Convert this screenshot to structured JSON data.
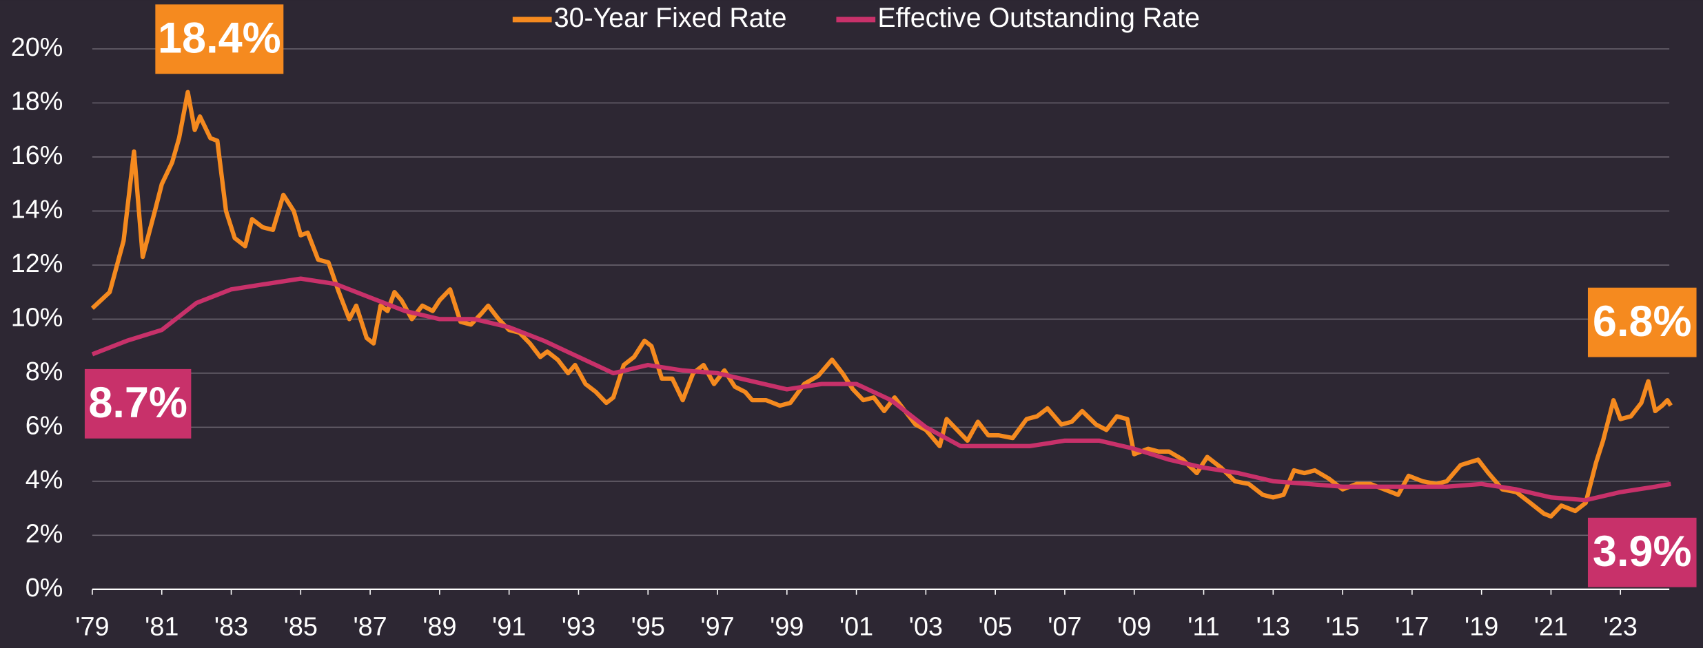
{
  "chart_data": {
    "type": "line",
    "xlim": [
      1979,
      2024.5
    ],
    "xticks": [
      {
        "value": 1979,
        "label": "'79"
      },
      {
        "value": 1981,
        "label": "'81"
      },
      {
        "value": 1983,
        "label": "'83"
      },
      {
        "value": 1985,
        "label": "'85"
      },
      {
        "value": 1987,
        "label": "'87"
      },
      {
        "value": 1989,
        "label": "'89"
      },
      {
        "value": 1991,
        "label": "'91"
      },
      {
        "value": 1993,
        "label": "'93"
      },
      {
        "value": 1995,
        "label": "'95"
      },
      {
        "value": 1997,
        "label": "'97"
      },
      {
        "value": 1999,
        "label": "'99"
      },
      {
        "value": 2001,
        "label": "'01"
      },
      {
        "value": 2003,
        "label": "'03"
      },
      {
        "value": 2005,
        "label": "'05"
      },
      {
        "value": 2007,
        "label": "'07"
      },
      {
        "value": 2009,
        "label": "'09"
      },
      {
        "value": 2011,
        "label": "'11"
      },
      {
        "value": 2013,
        "label": "'13"
      },
      {
        "value": 2015,
        "label": "'15"
      },
      {
        "value": 2017,
        "label": "'17"
      },
      {
        "value": 2019,
        "label": "'19"
      },
      {
        "value": 2021,
        "label": "'21"
      },
      {
        "value": 2023,
        "label": "'23"
      }
    ],
    "ylim": [
      0,
      20
    ],
    "yticks": [
      {
        "value": 0,
        "label": "0%"
      },
      {
        "value": 2,
        "label": "2%"
      },
      {
        "value": 4,
        "label": "4%"
      },
      {
        "value": 6,
        "label": "6%"
      },
      {
        "value": 8,
        "label": "8%"
      },
      {
        "value": 10,
        "label": "10%"
      },
      {
        "value": 12,
        "label": "12%"
      },
      {
        "value": 14,
        "label": "14%"
      },
      {
        "value": 16,
        "label": "16%"
      },
      {
        "value": 18,
        "label": "18%"
      },
      {
        "value": 20,
        "label": "20%"
      }
    ],
    "grid": true,
    "legend": "top",
    "series": [
      {
        "name": "30-Year Fixed Rate",
        "color": "#f58a1f",
        "x": [
          1979.0,
          1979.5,
          1979.9,
          1980.2,
          1980.45,
          1980.8,
          1981.0,
          1981.3,
          1981.5,
          1981.75,
          1981.95,
          1982.1,
          1982.4,
          1982.6,
          1982.85,
          1983.1,
          1983.4,
          1983.6,
          1983.9,
          1984.2,
          1984.5,
          1984.8,
          1985.0,
          1985.2,
          1985.5,
          1985.8,
          1986.1,
          1986.4,
          1986.6,
          1986.9,
          1987.1,
          1987.3,
          1987.5,
          1987.7,
          1987.9,
          1988.2,
          1988.5,
          1988.8,
          1989.0,
          1989.3,
          1989.6,
          1989.9,
          1990.2,
          1990.4,
          1990.7,
          1991.0,
          1991.3,
          1991.6,
          1991.9,
          1992.1,
          1992.4,
          1992.7,
          1992.9,
          1993.2,
          1993.5,
          1993.8,
          1994.0,
          1994.3,
          1994.6,
          1994.9,
          1995.1,
          1995.4,
          1995.7,
          1996.0,
          1996.3,
          1996.6,
          1996.9,
          1997.2,
          1997.5,
          1997.8,
          1998.0,
          1998.4,
          1998.8,
          1999.1,
          1999.5,
          1999.9,
          2000.3,
          2000.6,
          2000.9,
          2001.2,
          2001.5,
          2001.8,
          2002.1,
          2002.4,
          2002.7,
          2003.0,
          2003.4,
          2003.6,
          2003.9,
          2004.2,
          2004.5,
          2004.8,
          2005.1,
          2005.5,
          2005.9,
          2006.2,
          2006.5,
          2006.9,
          2007.2,
          2007.5,
          2007.9,
          2008.2,
          2008.5,
          2008.8,
          2009.0,
          2009.4,
          2009.7,
          2010.0,
          2010.4,
          2010.8,
          2011.1,
          2011.5,
          2011.9,
          2012.3,
          2012.7,
          2013.0,
          2013.3,
          2013.6,
          2013.9,
          2014.2,
          2014.6,
          2015.0,
          2015.4,
          2015.8,
          2016.2,
          2016.6,
          2016.9,
          2017.3,
          2017.7,
          2018.0,
          2018.4,
          2018.9,
          2019.2,
          2019.6,
          2020.0,
          2020.4,
          2020.8,
          2021.0,
          2021.3,
          2021.7,
          2022.0,
          2022.3,
          2022.5,
          2022.8,
          2023.0,
          2023.3,
          2023.6,
          2023.8,
          2024.0,
          2024.2,
          2024.35,
          2024.45
        ],
        "values": [
          10.4,
          11.0,
          12.9,
          16.2,
          12.3,
          14.0,
          15.0,
          15.8,
          16.7,
          18.4,
          17.0,
          17.5,
          16.7,
          16.6,
          14.0,
          13.0,
          12.7,
          13.7,
          13.4,
          13.3,
          14.6,
          14.0,
          13.1,
          13.2,
          12.2,
          12.1,
          11.0,
          10.0,
          10.5,
          9.3,
          9.1,
          10.5,
          10.3,
          11.0,
          10.7,
          10.0,
          10.5,
          10.3,
          10.7,
          11.1,
          9.9,
          9.8,
          10.2,
          10.5,
          10.0,
          9.6,
          9.5,
          9.1,
          8.6,
          8.8,
          8.5,
          8.0,
          8.3,
          7.6,
          7.3,
          6.9,
          7.1,
          8.3,
          8.6,
          9.2,
          9.0,
          7.8,
          7.8,
          7.0,
          8.0,
          8.3,
          7.6,
          8.1,
          7.5,
          7.3,
          7.0,
          7.0,
          6.8,
          6.9,
          7.6,
          7.9,
          8.5,
          8.0,
          7.4,
          7.0,
          7.1,
          6.6,
          7.1,
          6.6,
          6.1,
          5.9,
          5.3,
          6.3,
          5.9,
          5.5,
          6.2,
          5.7,
          5.7,
          5.6,
          6.3,
          6.4,
          6.7,
          6.1,
          6.2,
          6.6,
          6.1,
          5.9,
          6.4,
          6.3,
          5.0,
          5.2,
          5.1,
          5.1,
          4.8,
          4.3,
          4.9,
          4.5,
          4.0,
          3.9,
          3.5,
          3.4,
          3.5,
          4.4,
          4.3,
          4.4,
          4.1,
          3.7,
          3.9,
          3.9,
          3.7,
          3.5,
          4.2,
          4.0,
          3.9,
          4.0,
          4.6,
          4.8,
          4.3,
          3.7,
          3.6,
          3.2,
          2.8,
          2.7,
          3.1,
          2.9,
          3.2,
          4.7,
          5.5,
          7.0,
          6.3,
          6.4,
          6.9,
          7.7,
          6.6,
          6.8,
          7.0,
          6.8
        ]
      },
      {
        "name": "Effective Outstanding Rate",
        "color": "#c8316a",
        "x": [
          1979,
          1980,
          1981,
          1982,
          1983,
          1984,
          1985,
          1986,
          1987,
          1988,
          1989,
          1990,
          1991,
          1992,
          1993,
          1994,
          1995,
          1996,
          1997,
          1998,
          1999,
          2000,
          2001,
          2002,
          2003,
          2004,
          2005,
          2006,
          2007,
          2008,
          2009,
          2010,
          2011,
          2012,
          2013,
          2014,
          2015,
          2016,
          2017,
          2018,
          2019,
          2020,
          2021,
          2022,
          2023,
          2024,
          2024.45
        ],
        "values": [
          8.7,
          9.2,
          9.6,
          10.6,
          11.1,
          11.3,
          11.5,
          11.3,
          10.8,
          10.3,
          10.0,
          10.0,
          9.7,
          9.2,
          8.6,
          8.0,
          8.3,
          8.1,
          8.0,
          7.7,
          7.4,
          7.6,
          7.6,
          7.0,
          6.0,
          5.3,
          5.3,
          5.3,
          5.5,
          5.5,
          5.2,
          4.8,
          4.5,
          4.3,
          4.0,
          3.9,
          3.8,
          3.8,
          3.8,
          3.8,
          3.9,
          3.7,
          3.4,
          3.3,
          3.6,
          3.8,
          3.9
        ]
      }
    ],
    "annotations": [
      {
        "text": "18.4%",
        "color": "#f58a1f"
      },
      {
        "text": "8.7%",
        "color": "#c8316a"
      },
      {
        "text": "6.8%",
        "color": "#f58a1f"
      },
      {
        "text": "3.9%",
        "color": "#c8316a"
      }
    ]
  }
}
